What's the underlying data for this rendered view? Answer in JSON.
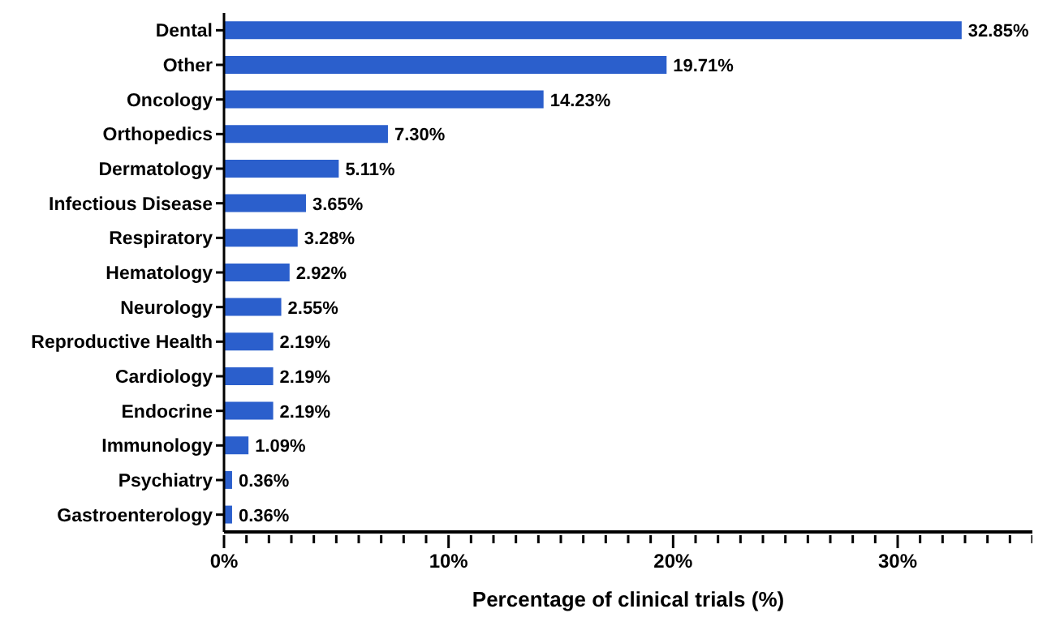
{
  "chart_data": {
    "type": "bar",
    "orientation": "horizontal",
    "xlabel": "Percentage of clinical trials (%)",
    "categories": [
      "Dental",
      "Other",
      "Oncology",
      "Orthopedics",
      "Dermatology",
      "Infectious Disease",
      "Respiratory",
      "Hematology",
      "Neurology",
      "Reproductive Health",
      "Cardiology",
      "Endocrine",
      "Immunology",
      "Psychiatry",
      "Gastroenterology"
    ],
    "values": [
      32.85,
      19.71,
      14.23,
      7.3,
      5.11,
      3.65,
      3.28,
      2.92,
      2.55,
      2.19,
      2.19,
      2.19,
      1.09,
      0.36,
      0.36
    ],
    "value_labels": [
      "32.85%",
      "19.71%",
      "14.23%",
      "7.30%",
      "5.11%",
      "3.65%",
      "3.28%",
      "2.92%",
      "2.55%",
      "2.19%",
      "2.19%",
      "2.19%",
      "1.09%",
      "0.36%",
      "0.36%"
    ],
    "color": "#2b5fcc",
    "xlim": [
      0,
      36
    ],
    "xticks": [
      {
        "value": 0,
        "label": "0%"
      },
      {
        "value": 1,
        "label": null
      },
      {
        "value": 2,
        "label": null
      },
      {
        "value": 3,
        "label": null
      },
      {
        "value": 4,
        "label": null
      },
      {
        "value": 5,
        "label": null
      },
      {
        "value": 6,
        "label": null
      },
      {
        "value": 7,
        "label": null
      },
      {
        "value": 8,
        "label": null
      },
      {
        "value": 9,
        "label": null
      },
      {
        "value": 10,
        "label": "10%"
      },
      {
        "value": 11,
        "label": null
      },
      {
        "value": 12,
        "label": null
      },
      {
        "value": 13,
        "label": null
      },
      {
        "value": 14,
        "label": null
      },
      {
        "value": 15,
        "label": null
      },
      {
        "value": 16,
        "label": null
      },
      {
        "value": 17,
        "label": null
      },
      {
        "value": 18,
        "label": null
      },
      {
        "value": 19,
        "label": null
      },
      {
        "value": 20,
        "label": "20%"
      },
      {
        "value": 21,
        "label": null
      },
      {
        "value": 22,
        "label": null
      },
      {
        "value": 23,
        "label": null
      },
      {
        "value": 24,
        "label": null
      },
      {
        "value": 25,
        "label": null
      },
      {
        "value": 26,
        "label": null
      },
      {
        "value": 27,
        "label": null
      },
      {
        "value": 28,
        "label": null
      },
      {
        "value": 29,
        "label": null
      },
      {
        "value": 30,
        "label": "30%"
      },
      {
        "value": 31,
        "label": null
      },
      {
        "value": 32,
        "label": null
      },
      {
        "value": 33,
        "label": null
      },
      {
        "value": 34,
        "label": null
      },
      {
        "value": 35,
        "label": null
      },
      {
        "value": 36,
        "label": null
      }
    ],
    "grid": false,
    "legend": false
  }
}
